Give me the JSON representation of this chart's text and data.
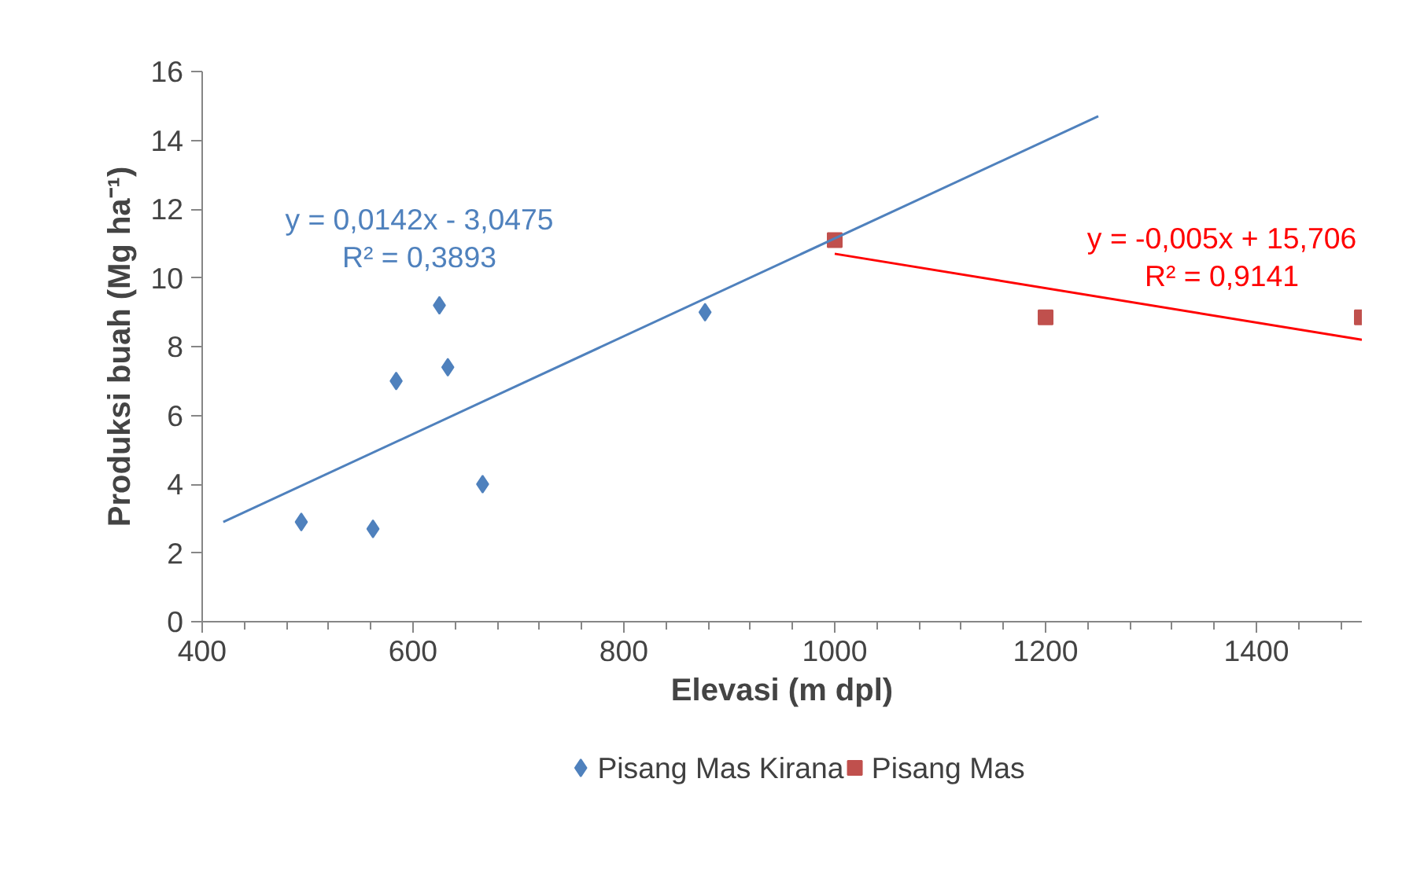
{
  "chart_data": {
    "type": "scatter",
    "xlabel": "Elevasi (m dpl)",
    "ylabel": "Produksi buah (Mg ha⁻¹)",
    "xlim": [
      400,
      1500
    ],
    "xticks": [
      400,
      600,
      800,
      1000,
      1200,
      1400
    ],
    "ylim": [
      0,
      16
    ],
    "yticks": [
      0,
      2,
      4,
      6,
      8,
      10,
      12,
      14,
      16
    ],
    "grid": false,
    "legend": "bottom",
    "series": [
      {
        "name": "Pisang Mas Kirana",
        "color": "#4f81bd",
        "marker": "diamond",
        "x": [
          494,
          562,
          584,
          625,
          633,
          666,
          877
        ],
        "values": [
          2.9,
          2.7,
          7.0,
          9.2,
          7.4,
          4.0,
          9.0
        ]
      },
      {
        "name": "Pisang Mas",
        "color": "#c0504d",
        "marker": "square",
        "x": [
          1000,
          1200,
          1500
        ],
        "values": [
          11.1,
          8.85,
          8.85
        ]
      },
      {
        "type": "line",
        "color": "#4f81bd",
        "marker": "none",
        "x": [
          420,
          1250
        ],
        "values": [
          2.9,
          14.7
        ]
      },
      {
        "type": "line",
        "color": "#ff0000",
        "marker": "none",
        "x": [
          1000,
          1500
        ],
        "values": [
          10.7,
          8.2
        ]
      }
    ],
    "annotations": [
      "y = 0,0142x - 3,0475",
      "R² = 0,3893",
      "y = -0,005x + 15,706",
      "R² = 0,9141"
    ]
  }
}
